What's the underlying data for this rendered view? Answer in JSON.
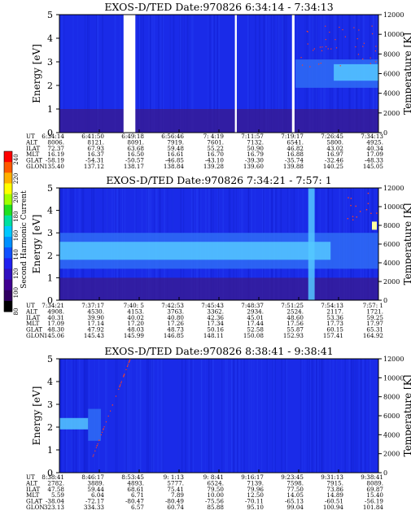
{
  "colors": {
    "background_blue": "#1a2be8",
    "band_mid": "#2f6cf5",
    "band_bright": "#55c8ff",
    "low_energy_purple": "#3a1a8c",
    "gap_white": "#ffffff",
    "speckle_red": "#ff4020"
  },
  "colorbar": {
    "label": "Second Harmonic Current",
    "ticks": [
      "240",
      "220",
      "200",
      "180",
      "160",
      "140",
      "120",
      "100",
      "80"
    ],
    "colors": [
      "#ff0000",
      "#ff5a00",
      "#ffb000",
      "#ffff00",
      "#a0ff00",
      "#20e020",
      "#00e0a0",
      "#00c8ff",
      "#0090ff",
      "#1050ff",
      "#2020f0",
      "#3010c0",
      "#400090",
      "#300060",
      "#000000"
    ]
  },
  "chart_data": [
    {
      "type": "heatmap",
      "title": "EXOS-D/TED   Date:970826  6:34:14 - 7:34:13",
      "ylabel": "Energy [eV]",
      "y2label": "Temperature [K]",
      "ylim": [
        0,
        5
      ],
      "y2lim": [
        0,
        12000
      ],
      "yticks": [
        "0",
        "1",
        "2",
        "3",
        "4",
        "5"
      ],
      "y2ticks": [
        "0",
        "2000",
        "4000",
        "6000",
        "8000",
        "10000",
        "12000"
      ],
      "x_fraction_range": [
        0,
        1
      ],
      "gaps": [
        [
          0.201,
          0.238
        ],
        [
          0.55,
          0.556
        ],
        [
          0.729,
          0.737
        ]
      ],
      "bands": [
        {
          "x": [
            0.0,
            1.0
          ],
          "y": [
            0.0,
            1.0
          ],
          "level": "low"
        },
        {
          "x": [
            0.74,
            1.0
          ],
          "y": [
            1.9,
            3.1
          ],
          "level": "mid"
        },
        {
          "x": [
            0.86,
            1.0
          ],
          "y": [
            2.2,
            2.9
          ],
          "level": "high"
        }
      ],
      "row_labels": [
        "UT",
        "ALT",
        "ILAT",
        "MLT",
        "GLAT",
        "GLON"
      ],
      "columns": [
        [
          "6:34:14",
          "8006.",
          "72.37",
          "16.19",
          "-58.19",
          "135.40"
        ],
        [
          "6:41:50",
          "8121.",
          "67.93",
          "16.37",
          "-54.31",
          "137.12"
        ],
        [
          "6:49:18",
          "8091.",
          "63.68",
          "16.50",
          "-50.57",
          "138.17"
        ],
        [
          "6:56:46",
          "7919.",
          "59.48",
          "16.61",
          "-46.85",
          "138.84"
        ],
        [
          "7: 4:19",
          "7601.",
          "55.22",
          "16.70",
          "-43.10",
          "139.28"
        ],
        [
          "7:11:57",
          "7132.",
          "50.90",
          "16.79",
          "-39.30",
          "139.60"
        ],
        [
          "7:19:17",
          "6541.",
          "46.82",
          "16.88",
          "-35.74",
          "139.88"
        ],
        [
          "7:26:45",
          "5800.",
          "43.02",
          "16.97",
          "-32.46",
          "140.25"
        ],
        [
          "7:34:13",
          "4925.",
          "40.34",
          "17.09",
          "-48.33",
          "145.05"
        ]
      ]
    },
    {
      "type": "heatmap",
      "title": "EXOS-D/TED   Date:970826  7:34:21 - 7:57: 1",
      "ylabel": "Energy [eV]",
      "y2label": "Temperature [K]",
      "ylim": [
        0,
        5
      ],
      "y2lim": [
        0,
        12000
      ],
      "yticks": [
        "0",
        "1",
        "2",
        "3",
        "4",
        "5"
      ],
      "y2ticks": [
        "0",
        "2000",
        "4000",
        "6000",
        "8000",
        "10000",
        "12000"
      ],
      "x_fraction_range": [
        0,
        1
      ],
      "gaps": [],
      "bands": [
        {
          "x": [
            0.0,
            1.0
          ],
          "y": [
            0.0,
            1.0
          ],
          "level": "low"
        },
        {
          "x": [
            0.0,
            1.0
          ],
          "y": [
            1.4,
            3.0
          ],
          "level": "mid"
        },
        {
          "x": [
            0.0,
            0.85
          ],
          "y": [
            1.8,
            2.6
          ],
          "level": "high"
        },
        {
          "x": [
            0.78,
            0.8
          ],
          "y": [
            0.0,
            5.0
          ],
          "level": "high"
        }
      ],
      "row_labels": [
        "UT",
        "ALT",
        "ILAT",
        "MLT",
        "GLAT",
        "GLON"
      ],
      "columns": [
        [
          "7:34:21",
          "4908.",
          "40.31",
          "17.09",
          "48.30",
          "145.06"
        ],
        [
          "7:37:17",
          "4530.",
          "39.90",
          "17.14",
          "47.92",
          "145.43"
        ],
        [
          "7:40: 5",
          "4153.",
          "40.02",
          "17.20",
          "48.03",
          "145.99"
        ],
        [
          "7:42:53",
          "3763.",
          "40.80",
          "17.26",
          "48.73",
          "146.85"
        ],
        [
          "7:45:43",
          "3362.",
          "42.36",
          "17.34",
          "50.16",
          "148.11"
        ],
        [
          "7:48:37",
          "2934.",
          "45.01",
          "17.44",
          "52.58",
          "150.08"
        ],
        [
          "7:51:25",
          "2524.",
          "48.60",
          "17.56",
          "55.87",
          "152.93"
        ],
        [
          "7:54:13",
          "2117.",
          "53.36",
          "17.73",
          "60.15",
          "157.41"
        ],
        [
          "7:57: 1",
          "1721.",
          "59.25",
          "17.97",
          "65.31",
          "164.92"
        ]
      ]
    },
    {
      "type": "heatmap",
      "title": "EXOS-D/TED   Date:970826  8:38:41 - 9:38:41",
      "ylabel": "Energy [eV]",
      "y2label": "Temperature [K]",
      "ylim": [
        0,
        5
      ],
      "y2lim": [
        0,
        12000
      ],
      "yticks": [
        "0",
        "1",
        "2",
        "3",
        "4",
        "5"
      ],
      "y2ticks": [
        "0",
        "2000",
        "4000",
        "6000",
        "8000",
        "10000",
        "12000"
      ],
      "x_fraction_range": [
        0,
        1
      ],
      "gaps": [],
      "bands": [
        {
          "x": [
            0.0,
            0.09
          ],
          "y": [
            1.9,
            2.4
          ],
          "level": "high"
        },
        {
          "x": [
            0.09,
            0.13
          ],
          "y": [
            1.4,
            2.8
          ],
          "level": "mid"
        }
      ],
      "row_labels": [
        "UT",
        "ALT",
        "ILAT",
        "MLT",
        "GLAT",
        "GLON"
      ],
      "columns": [
        [
          "8:38:41",
          "2782.",
          "47.58",
          "5.59",
          "-38.04",
          "323.13"
        ],
        [
          "8:46:17",
          "3889.",
          "59.44",
          "6.04",
          "-72.17",
          "334.33"
        ],
        [
          "8:53:45",
          "4893.",
          "68.61",
          "6.71",
          "-80.47",
          "6.57"
        ],
        [
          "9: 1:13",
          "5777.",
          "75.41",
          "7.89",
          "-80.49",
          "60.74"
        ],
        [
          "9: 8:41",
          "6524.",
          "79.50",
          "10.00",
          "-75.56",
          "85.88"
        ],
        [
          "9:16:17",
          "7139.",
          "79.96",
          "12.50",
          "-70.11",
          "95.10"
        ],
        [
          "9:23:45",
          "7598.",
          "77.50",
          "14.05",
          "-65.13",
          "99.04"
        ],
        [
          "9:31:13",
          "7915.",
          "73.86",
          "14.89",
          "-60.51",
          "100.94"
        ],
        [
          "9:38:41",
          "8089.",
          "69.87",
          "15.40",
          "-56.19",
          "101.84"
        ]
      ]
    }
  ]
}
